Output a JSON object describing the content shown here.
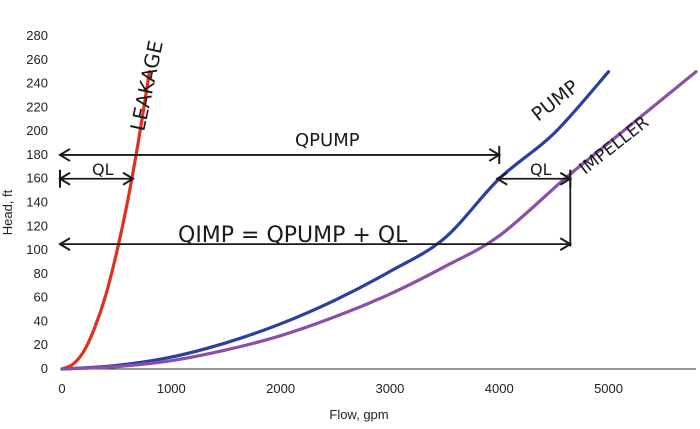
{
  "chart_data": {
    "type": "line",
    "title": "",
    "xlabel": "Flow, gpm",
    "ylabel": "Head, ft",
    "xlim": [
      0,
      5800
    ],
    "ylim": [
      0,
      280
    ],
    "x_ticks": [
      0,
      1000,
      2000,
      3000,
      4000,
      5000
    ],
    "y_ticks": [
      0,
      20,
      40,
      60,
      80,
      100,
      120,
      140,
      160,
      180,
      200,
      220,
      240,
      260,
      280
    ],
    "grid": false,
    "series": [
      {
        "name": "LEAKAGE",
        "color": "#e03020",
        "x": [
          0,
          100,
          200,
          300,
          400,
          500,
          600,
          700,
          800
        ],
        "y": [
          0,
          4,
          15,
          35,
          62,
          98,
          141,
          192,
          250
        ]
      },
      {
        "name": "PUMP",
        "color": "#2a3f9e",
        "x": [
          0,
          500,
          1000,
          1500,
          2000,
          2500,
          3000,
          3500,
          4000,
          4500,
          5000
        ],
        "y": [
          0,
          3,
          10,
          22,
          38,
          58,
          82,
          110,
          160,
          198,
          250
        ]
      },
      {
        "name": "IMPELLER",
        "color": "#8a4fa8",
        "x": [
          0,
          500,
          1000,
          1500,
          2000,
          2500,
          3000,
          3500,
          4000,
          4600,
          5000,
          5800
        ],
        "y": [
          0,
          2,
          7,
          16,
          28,
          44,
          63,
          86,
          112,
          160,
          190,
          250
        ]
      }
    ],
    "annotations": [
      {
        "text": "LEAKAGE",
        "target": "leakage curve label"
      },
      {
        "text": "PUMP",
        "target": "pump curve label"
      },
      {
        "text": "IMPELLER",
        "target": "impeller curve label"
      },
      {
        "text": "QPUMP",
        "y": 180,
        "from_x": 0,
        "to_x": 4000
      },
      {
        "text": "QL",
        "y": 160,
        "from_x": 0,
        "to_x": 650
      },
      {
        "text": "QL",
        "y": 160,
        "from_x": 4000,
        "to_x": 4650
      },
      {
        "text": "QIMP = QPUMP + QL",
        "y": 105,
        "from_x": 0,
        "to_x": 4650
      }
    ]
  }
}
